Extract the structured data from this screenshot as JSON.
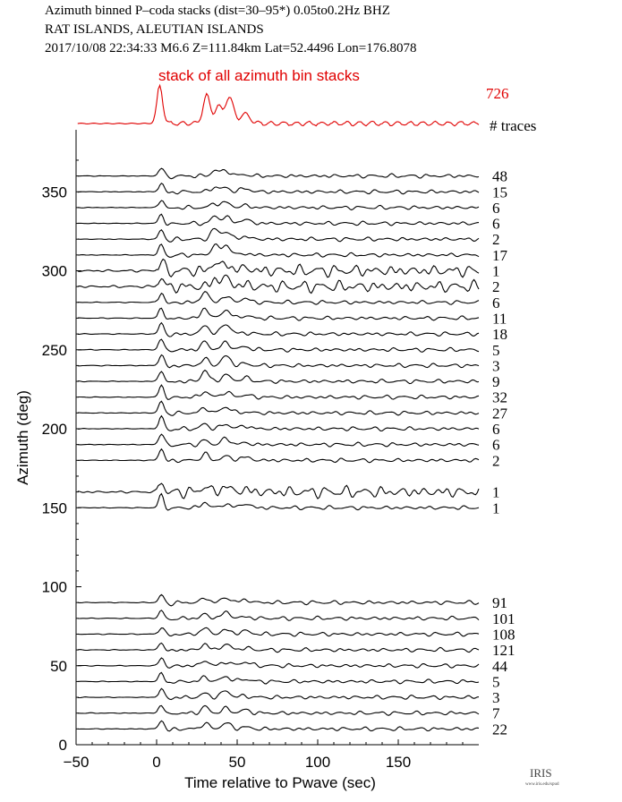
{
  "header": {
    "line1": "Azimuth binned P–coda stacks (dist=30–95*)  0.05to0.2Hz  BHZ",
    "line2": "RAT ISLANDS, ALEUTIAN ISLANDS",
    "line3": "2017/10/08   22:34:33  M6.6  Z=111.84km Lat=52.4496 Lon=176.8078"
  },
  "stack": {
    "label": "stack of all azimuth bin stacks",
    "count": "726",
    "count_label": "# traces"
  },
  "logo": {
    "name": "IRIS",
    "url": "www.iris.edu/spud"
  },
  "colors": {
    "stack": "#e00000",
    "traces": "#000000"
  },
  "chart_data": {
    "type": "line",
    "title": "",
    "xlabel": "Time relative to Pwave (sec)",
    "ylabel": "Azimuth (deg)",
    "xlim": [
      -50,
      200
    ],
    "ylim": [
      0,
      380
    ],
    "xticks": [
      -50,
      0,
      50,
      100,
      150
    ],
    "yticks": [
      0,
      50,
      100,
      150,
      200,
      250,
      300,
      350
    ],
    "grid": false,
    "series": [
      {
        "azimuth": 360,
        "traces": "48"
      },
      {
        "azimuth": 350,
        "traces": "15"
      },
      {
        "azimuth": 340,
        "traces": "6"
      },
      {
        "azimuth": 330,
        "traces": "6"
      },
      {
        "azimuth": 320,
        "traces": "2"
      },
      {
        "azimuth": 310,
        "traces": "17"
      },
      {
        "azimuth": 300,
        "traces": "1"
      },
      {
        "azimuth": 290,
        "traces": "2"
      },
      {
        "azimuth": 280,
        "traces": "6"
      },
      {
        "azimuth": 270,
        "traces": "11"
      },
      {
        "azimuth": 260,
        "traces": "18"
      },
      {
        "azimuth": 250,
        "traces": "5"
      },
      {
        "azimuth": 240,
        "traces": "3"
      },
      {
        "azimuth": 230,
        "traces": "9"
      },
      {
        "azimuth": 220,
        "traces": "32"
      },
      {
        "azimuth": 210,
        "traces": "27"
      },
      {
        "azimuth": 200,
        "traces": "6"
      },
      {
        "azimuth": 190,
        "traces": "6"
      },
      {
        "azimuth": 180,
        "traces": "2"
      },
      {
        "azimuth": 160,
        "traces": "1"
      },
      {
        "azimuth": 150,
        "traces": "1"
      },
      {
        "azimuth": 90,
        "traces": "91"
      },
      {
        "azimuth": 80,
        "traces": "101"
      },
      {
        "azimuth": 70,
        "traces": "108"
      },
      {
        "azimuth": 60,
        "traces": "121"
      },
      {
        "azimuth": 50,
        "traces": "44"
      },
      {
        "azimuth": 40,
        "traces": "5"
      },
      {
        "azimuth": 30,
        "traces": "3"
      },
      {
        "azimuth": 20,
        "traces": "7"
      },
      {
        "azimuth": 10,
        "traces": "22"
      }
    ]
  }
}
